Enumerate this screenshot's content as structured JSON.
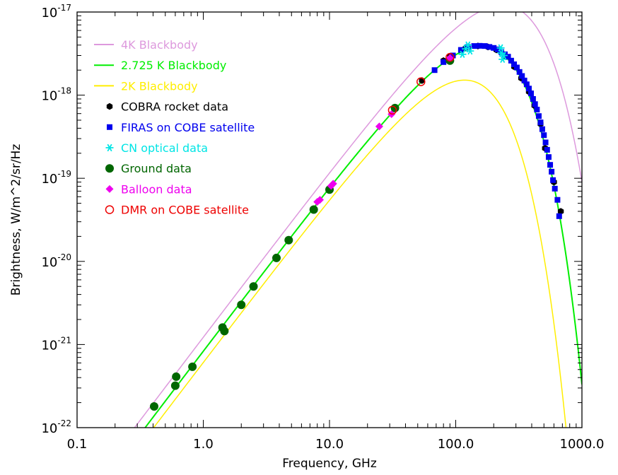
{
  "chart_data": {
    "type": "scatter",
    "title": "",
    "xlabel": "Frequency, GHz",
    "ylabel": "Brightness, W/m^2/sr/Hz",
    "xscale": "log",
    "yscale": "log",
    "xlim": [
      0.1,
      1000.0
    ],
    "ylim": [
      1e-22,
      1e-17
    ],
    "x_tick_labels": [
      "0.1",
      "1.0",
      "10.0",
      "100.0",
      "1000.0"
    ],
    "y_tick_labels": [
      {
        "base": "10",
        "exp": "-22"
      },
      {
        "base": "10",
        "exp": "-21"
      },
      {
        "base": "10",
        "exp": "-20"
      },
      {
        "base": "10",
        "exp": "-19"
      },
      {
        "base": "10",
        "exp": "-18"
      },
      {
        "base": "10",
        "exp": "-17"
      }
    ],
    "legend_position": "top-left",
    "curves": [
      {
        "name": "4K Blackbody",
        "temperature_K": 4.0,
        "color": "#dd99dd"
      },
      {
        "name": "2.725 K Blackbody",
        "temperature_K": 2.725,
        "color": "#00ee00"
      },
      {
        "name": "2K Blackbody",
        "temperature_K": 2.0,
        "color": "#ffee00"
      }
    ],
    "series": [
      {
        "name": "COBRA rocket data",
        "marker": "hexagon",
        "color": "#000000",
        "points": [
          [
            54,
            1.5e-18
          ],
          [
            80,
            2.6e-18
          ],
          [
            90,
            2.9e-18
          ],
          [
            120,
            3.7e-18
          ],
          [
            150,
            3.9e-18
          ],
          [
            180,
            3.8e-18
          ],
          [
            210,
            3.5e-18
          ],
          [
            250,
            2.9e-18
          ],
          [
            290,
            2.2e-18
          ],
          [
            330,
            1.6e-18
          ],
          [
            380,
            1.1e-18
          ],
          [
            420,
            7.5e-19
          ],
          [
            470,
            4.5e-19
          ],
          [
            510,
            2.3e-19
          ],
          [
            600,
            9e-20
          ],
          [
            680,
            4e-20
          ]
        ]
      },
      {
        "name": "FIRAS on COBE satellite",
        "marker": "square",
        "color": "#0000ee",
        "points": [
          [
            68,
            2e-18
          ],
          [
            80,
            2.5e-18
          ],
          [
            95,
            3e-18
          ],
          [
            110,
            3.5e-18
          ],
          [
            125,
            3.8e-18
          ],
          [
            140,
            3.9e-18
          ],
          [
            155,
            3.92e-18
          ],
          [
            170,
            3.9e-18
          ],
          [
            185,
            3.8e-18
          ],
          [
            200,
            3.7e-18
          ],
          [
            215,
            3.55e-18
          ],
          [
            230,
            3.3e-18
          ],
          [
            245,
            3.1e-18
          ],
          [
            260,
            2.9e-18
          ],
          [
            275,
            2.6e-18
          ],
          [
            290,
            2.35e-18
          ],
          [
            305,
            2.15e-18
          ],
          [
            320,
            1.9e-18
          ],
          [
            335,
            1.7e-18
          ],
          [
            350,
            1.5e-18
          ],
          [
            365,
            1.35e-18
          ],
          [
            380,
            1.2e-18
          ],
          [
            395,
            1.05e-18
          ],
          [
            410,
            9e-19
          ],
          [
            425,
            7.8e-19
          ],
          [
            440,
            6.7e-19
          ],
          [
            455,
            5.6e-19
          ],
          [
            470,
            4.7e-19
          ],
          [
            485,
            3.9e-19
          ],
          [
            500,
            3.3e-19
          ],
          [
            515,
            2.7e-19
          ],
          [
            530,
            2.2e-19
          ],
          [
            545,
            1.8e-19
          ],
          [
            560,
            1.45e-19
          ],
          [
            575,
            1.2e-19
          ],
          [
            590,
            9.5e-20
          ],
          [
            610,
            7.5e-20
          ],
          [
            640,
            5.5e-20
          ],
          [
            660,
            3.5e-20
          ]
        ]
      },
      {
        "name": "CN optical data",
        "marker": "star",
        "color": "#00e5e5",
        "points": [
          [
            113,
            3.1e-18
          ],
          [
            120,
            3.6e-18
          ],
          [
            125,
            4e-18
          ],
          [
            130,
            3.4e-18
          ],
          [
            227,
            3.7e-18
          ],
          [
            230,
            3.2e-18
          ],
          [
            235,
            2.7e-18
          ],
          [
            240,
            3e-18
          ]
        ]
      },
      {
        "name": "Ground data",
        "marker": "circle",
        "color": "#006600",
        "points": [
          [
            0.408,
            1.8e-22
          ],
          [
            0.6,
            3.2e-22
          ],
          [
            0.61,
            4.1e-22
          ],
          [
            0.82,
            5.4e-22
          ],
          [
            1.42,
            1.6e-21
          ],
          [
            1.47,
            1.45e-21
          ],
          [
            2.0,
            3e-21
          ],
          [
            2.5,
            5e-21
          ],
          [
            3.8,
            1.1e-20
          ],
          [
            4.75,
            1.8e-20
          ],
          [
            7.5,
            4.2e-20
          ],
          [
            10.0,
            7.3e-20
          ],
          [
            33,
            7e-19
          ],
          [
            90,
            2.6e-18
          ]
        ]
      },
      {
        "name": "Balloon data",
        "marker": "diamond",
        "color": "#ee00ee",
        "points": [
          [
            8.0,
            5.2e-20
          ],
          [
            8.4,
            5.5e-20
          ],
          [
            10.3,
            8.1e-20
          ],
          [
            10.7,
            8.6e-20
          ],
          [
            24.8,
            4.2e-19
          ],
          [
            31,
            5.9e-19
          ],
          [
            90,
            2.8e-18
          ]
        ]
      },
      {
        "name": "DMR on COBE satellite",
        "marker": "open-circle",
        "color": "#ee0000",
        "points": [
          [
            31.5,
            6.6e-19
          ],
          [
            53,
            1.45e-18
          ],
          [
            90,
            2.85e-18
          ]
        ]
      }
    ]
  }
}
